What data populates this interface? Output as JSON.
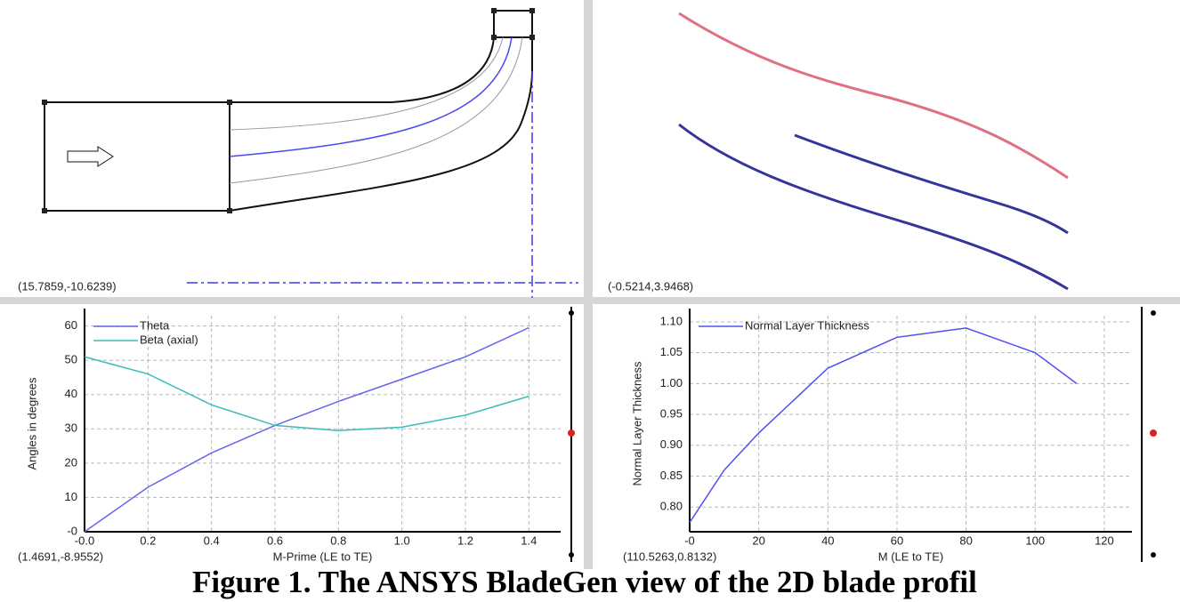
{
  "caption": "Figure 1. The ANSYS BladeGen view of the 2D blade profil",
  "meridional_view": {
    "annotation": "(15.7859,-10.6239)"
  },
  "blade_view": {
    "annotation": "(-0.5214,3.9468)"
  },
  "chart_data": [
    {
      "type": "line",
      "xlabel": "M-Prime (LE to TE)",
      "ylabel": "Angles in degrees",
      "annotation": "(1.4691,-8.9552)",
      "x": [
        0,
        0.2,
        0.4,
        0.6,
        0.8,
        1.0,
        1.2,
        1.4
      ],
      "series": [
        {
          "name": "Theta",
          "color": "#6464f0",
          "values": [
            0,
            13,
            23,
            31,
            38,
            44.5,
            51,
            59.5
          ]
        },
        {
          "name": "Beta (axial)",
          "color": "#3cbcbc",
          "values": [
            51,
            46,
            37,
            31,
            29.5,
            30.5,
            34,
            39.5
          ]
        }
      ],
      "xlim": [
        0,
        1.5
      ],
      "ylim": [
        0,
        63
      ],
      "xticks": [
        {
          "value": 0,
          "label": "-0.0"
        },
        0.2,
        0.4,
        0.6,
        0.8,
        {
          "value": 1,
          "label": "1.0"
        },
        1.2,
        1.4
      ],
      "yticks": [
        {
          "value": 0,
          "label": "-0"
        },
        10,
        20,
        30,
        40,
        50,
        60
      ],
      "grid": true,
      "legend": "upper left"
    },
    {
      "type": "line",
      "xlabel": "M (LE to TE)",
      "ylabel": "Normal Layer Thickness",
      "annotation": "(110.5263,0.8132)",
      "x": [
        0,
        10,
        20,
        40,
        60,
        80,
        100,
        112
      ],
      "series": [
        {
          "name": "Normal Layer Thickness",
          "color": "#5050f0",
          "values": [
            0.775,
            0.86,
            0.92,
            1.025,
            1.075,
            1.09,
            1.05,
            1.0
          ]
        }
      ],
      "xlim": [
        0,
        128
      ],
      "ylim": [
        0.76,
        1.11
      ],
      "xticks": [
        {
          "value": 0,
          "label": "-0"
        },
        20,
        40,
        60,
        80,
        100,
        120
      ],
      "yticks": [
        {
          "value": 0.8,
          "label": "0.80"
        },
        {
          "value": 0.85,
          "label": "0.85"
        },
        {
          "value": 0.9,
          "label": "0.90"
        },
        {
          "value": 0.95,
          "label": "0.95"
        },
        {
          "value": 1.0,
          "label": "1.00"
        },
        {
          "value": 1.05,
          "label": "1.05"
        },
        {
          "value": 1.1,
          "label": "1.10"
        }
      ],
      "grid": true,
      "legend": "upper left"
    }
  ]
}
